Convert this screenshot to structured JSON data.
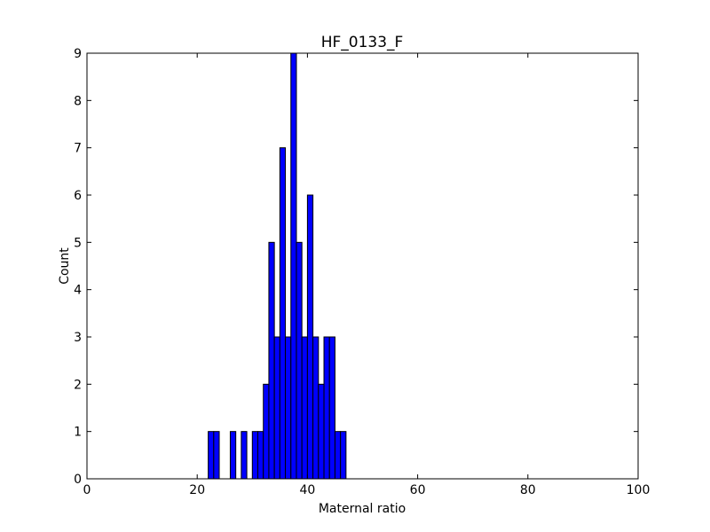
{
  "chart_data": {
    "type": "histogram",
    "title": "HF_0133_F",
    "x_label": "Maternal ratio",
    "y_label": "Count",
    "bins": [
      22,
      23,
      24,
      25,
      26,
      27,
      28,
      29,
      30,
      31,
      32,
      33,
      34,
      35,
      36,
      37,
      38,
      39,
      40,
      41,
      42,
      43,
      44,
      45,
      46,
      47
    ],
    "values": [
      1,
      1,
      0,
      0,
      1,
      0,
      1,
      0,
      1,
      1,
      2,
      5,
      3,
      7,
      3,
      9,
      5,
      3,
      6,
      3,
      2,
      3,
      3,
      1,
      1
    ],
    "color": "#0000ff",
    "xlim": [
      0,
      100
    ],
    "xticks": [
      0,
      20,
      40,
      60,
      80,
      100
    ],
    "ylim": [
      0,
      9
    ],
    "yticks": [
      0,
      1,
      2,
      3,
      4,
      5,
      6,
      7,
      8,
      9
    ]
  }
}
